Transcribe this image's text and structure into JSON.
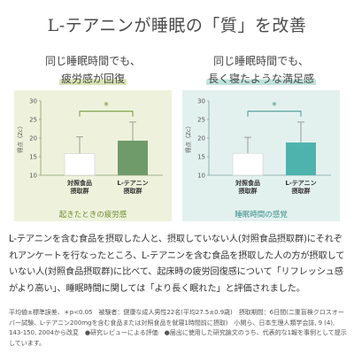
{
  "title": "L-テアニンが睡眠の「質」を改善",
  "panels": [
    {
      "line1": "同じ睡眠時間でも、",
      "line2": "疲労感が回復",
      "caption": "起きたときの疲労感",
      "bg": "#eef2dc",
      "highlight": "#d9e4b2",
      "caption_color": "#6c8a2a",
      "bar_color_control": "#ffffff",
      "bar_color_treated": "#6f9a6a",
      "axis_color": "#8a9a70"
    },
    {
      "line1": "同じ睡眠時間でも、",
      "line2": "長く寝たような満足感",
      "caption": "睡眠時間の感覚",
      "bg": "#e3f1ee",
      "highlight": "#bfe3dc",
      "caption_color": "#3b8f8a",
      "bar_color_control": "#ffffff",
      "bar_color_treated": "#4fb3ad",
      "axis_color": "#7aa5a0"
    }
  ],
  "chart_data": [
    {
      "type": "bar",
      "categories": [
        "対照食品\n摂取群",
        "L-テアニン\n摂取群"
      ],
      "values": [
        15.8,
        19.3
      ],
      "error": [
        4.5,
        5.0
      ],
      "ylabel": "得点（Zc）",
      "ylim": [
        10,
        30
      ],
      "yticks": [
        10,
        15,
        20,
        25,
        30
      ],
      "annotation": "*",
      "caption": "起きたときの疲労感"
    },
    {
      "type": "bar",
      "categories": [
        "対照食品\n摂取群",
        "L-テアニン\n摂取群"
      ],
      "values": [
        15.9,
        18.8
      ],
      "error": [
        4.3,
        5.5
      ],
      "ylabel": "得点（Zc）",
      "ylim": [
        10,
        30
      ],
      "yticks": [
        10,
        15,
        20,
        25,
        30
      ],
      "annotation": "*",
      "caption": "睡眠時間の感覚"
    }
  ],
  "body_text": "L-テアニンを含む食品を摂取した人と、摂取していない人(対照食品摂取群)にそれぞれアンケートを行なったところ、L-テアニンを含む食品を摂取した人の方が摂取していない人(対照食品摂取群)に比べて、起床時の疲労回復感について「リフレッシュ感がより高い」、睡眠時間に関しては「より長く眠れた」と評価されました。",
  "notes": "平均値±標準誤差、＊p<0.05　被験者：健康な成人男性22名(平均27.5±0.9歳)　摂取期間：6日間(二重盲検クロスオーバー試験、L-テアニン200mgを含む食品または対照食品を就寝1時間前に摂取)　小関ら、日本生理人類学会誌, 9 (4), 143-150, 2004から改変　●研究レビューによる評価　●届出に使用した研究論文のうち、代表的な1報を事例として提示しています。"
}
